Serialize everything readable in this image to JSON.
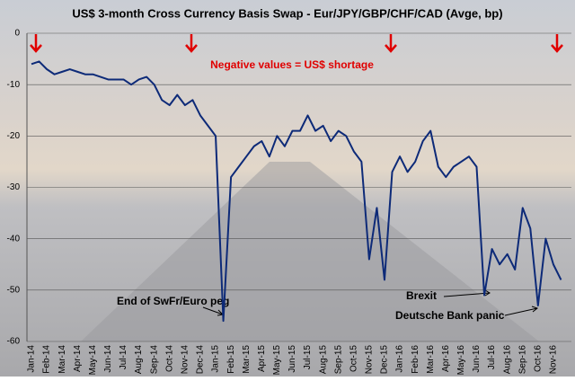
{
  "chart_data": {
    "type": "line",
    "title": "US$ 3-month Cross Currency Basis Swap - Eur/JPY/GBP/CHF/CAD (Avge, bp)",
    "categories": [
      "Jan-14",
      null,
      "Feb-14",
      null,
      "Mar-14",
      null,
      "Apr-14",
      null,
      "May-14",
      null,
      "Jun-14",
      null,
      "Jul-14",
      null,
      "Aug-14",
      null,
      "Sep-14",
      null,
      "Oct-14",
      null,
      "Nov-14",
      null,
      "Dec-14",
      null,
      "Jan-15",
      null,
      "Feb-15",
      null,
      "Mar-15",
      null,
      "Apr-15",
      null,
      "May-15",
      null,
      "Jun-15",
      null,
      "Jul-15",
      null,
      "Aug-15",
      null,
      "Sep-15",
      null,
      "Oct-15",
      null,
      "Nov-15",
      null,
      "Dec-15",
      null,
      "Jan-16",
      null,
      "Feb-16",
      null,
      "Mar-16",
      null,
      "Apr-16",
      null,
      "May-16",
      null,
      "Jun-16",
      null,
      "Jul-16",
      null,
      "Aug-16",
      null,
      "Sep-16",
      null,
      "Oct-16",
      null,
      "Nov-16",
      null
    ],
    "series": [
      {
        "color": "#0d2a78",
        "values": [
          -6,
          -5.5,
          -7,
          -8,
          -7.5,
          -7,
          -7.5,
          -8,
          -8,
          -8.5,
          -9,
          -9,
          -9,
          -10,
          -9,
          -8.5,
          -10,
          -13,
          -14,
          -12,
          -14,
          -13,
          -16,
          -18,
          -20,
          -56,
          -28,
          -26,
          -24,
          -22,
          -21,
          -24,
          -20,
          -22,
          -19,
          -19,
          -16,
          -19,
          -18,
          -21,
          -19,
          -20,
          -23,
          -25,
          -44,
          -34,
          -48,
          -27,
          -24,
          -27,
          -25,
          -21,
          -19,
          -26,
          -28,
          -26,
          -25,
          -24,
          -26,
          -51,
          -42,
          -45,
          -43,
          -46,
          -34,
          -38,
          -53,
          -40,
          -45,
          -48
        ]
      }
    ],
    "ylim": [
      -60,
      0
    ],
    "yticks": [
      0,
      -10,
      -20,
      -30,
      -40,
      -50,
      -60
    ],
    "grid": true,
    "annotations": [
      "Negative values = US$ shortage",
      "End of SwFr/Euro peg",
      "Brexit",
      "Deutsche Bank panic"
    ]
  }
}
